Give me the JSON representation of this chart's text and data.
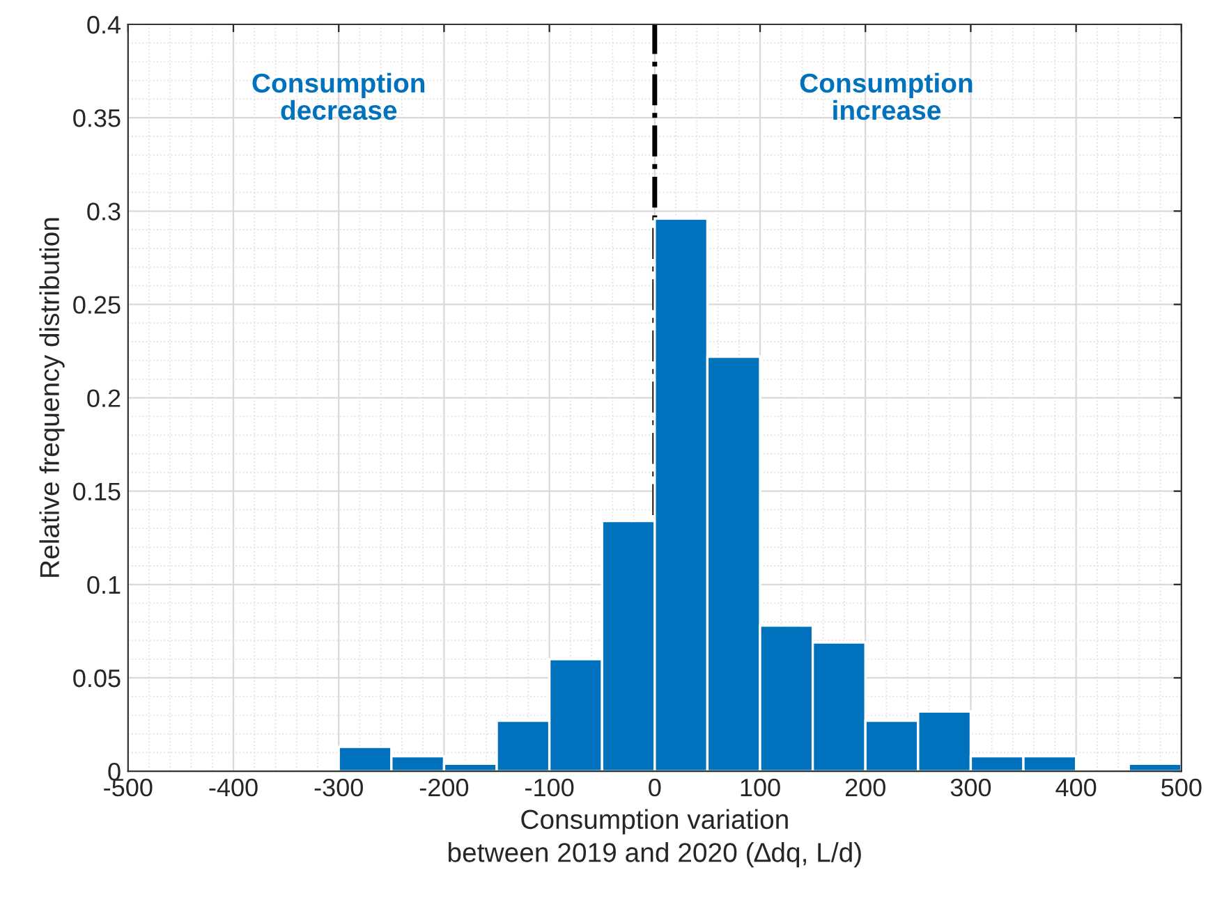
{
  "chart_data": {
    "type": "histogram",
    "xlabel": "Consumption variation\nbetween 2019 and 2020 (∆dq, L/d)",
    "ylabel": "Relative frequency distribution",
    "annotations": [
      "Consumption\ndecrease",
      "Consumption\nincrease"
    ],
    "bins": [
      -500,
      -450,
      -400,
      -350,
      -300,
      -250,
      -200,
      -150,
      -100,
      -50,
      0,
      50,
      100,
      150,
      200,
      250,
      300,
      350,
      400,
      450,
      500
    ],
    "values": [
      0,
      0,
      0,
      0,
      0.013,
      0.008,
      0.004,
      0.027,
      0.06,
      0.134,
      0.296,
      0.222,
      0.078,
      0.069,
      0.027,
      0.032,
      0.008,
      0.008,
      0,
      0.004
    ],
    "color": "#0072bd",
    "xlim": [
      -500,
      500
    ],
    "xticks": [
      -500,
      -400,
      -300,
      -200,
      -100,
      0,
      100,
      200,
      300,
      400,
      500
    ],
    "ylim": [
      0,
      0.4
    ],
    "yticks": [
      0,
      0.05,
      0.1,
      0.15,
      0.2,
      0.25,
      0.3,
      0.35,
      0.4
    ],
    "ref_lines": [
      {
        "axis": "x",
        "value": 0,
        "color": "#000000",
        "line_style": "dashdot"
      }
    ],
    "grid": true
  }
}
